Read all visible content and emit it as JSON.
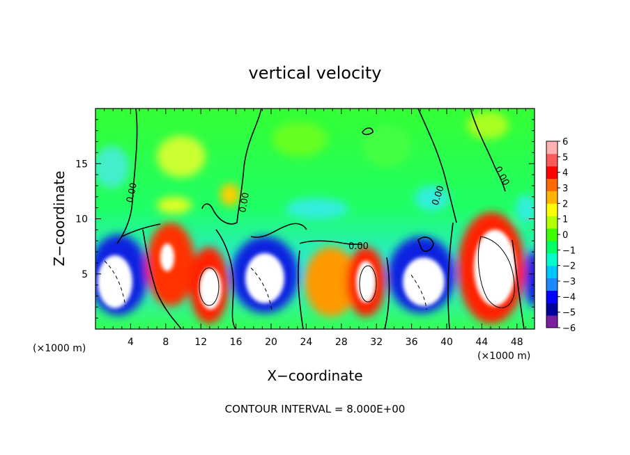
{
  "chart_data": {
    "type": "heatmap",
    "title": "vertical velocity",
    "xlabel": "X−coordinate",
    "ylabel": "Z−coordinate",
    "x_unit_left": "(×1000 m)",
    "x_unit_right": "(×1000 m)",
    "footer": "CONTOUR INTERVAL = 8.000E+00",
    "xlim": [
      0,
      50
    ],
    "ylim": [
      0,
      20
    ],
    "x_ticks": [
      "4",
      "8",
      "12",
      "16",
      "20",
      "24",
      "28",
      "32",
      "36",
      "40",
      "44",
      "48"
    ],
    "y_ticks": [
      "5",
      "10",
      "15"
    ],
    "colorbar": {
      "ticks": [
        "6",
        "5",
        "4",
        "3",
        "2",
        "1",
        "0",
        "−1",
        "−2",
        "−3",
        "−4",
        "−5",
        "−6"
      ],
      "range": [
        -6,
        6
      ],
      "colors": [
        "#7b1fa2",
        "#0000a0",
        "#0000ff",
        "#1e88ff",
        "#00c8ff",
        "#00ffcc",
        "#00ff66",
        "#3cff00",
        "#b4ff00",
        "#ffff00",
        "#ffb400",
        "#ff6a00",
        "#ff0000",
        "#ff5a5a",
        "#ffb0b0"
      ]
    },
    "contour_labels": [
      "0.00",
      "0.00",
      "0.00",
      "0.00",
      "0.00"
    ]
  }
}
